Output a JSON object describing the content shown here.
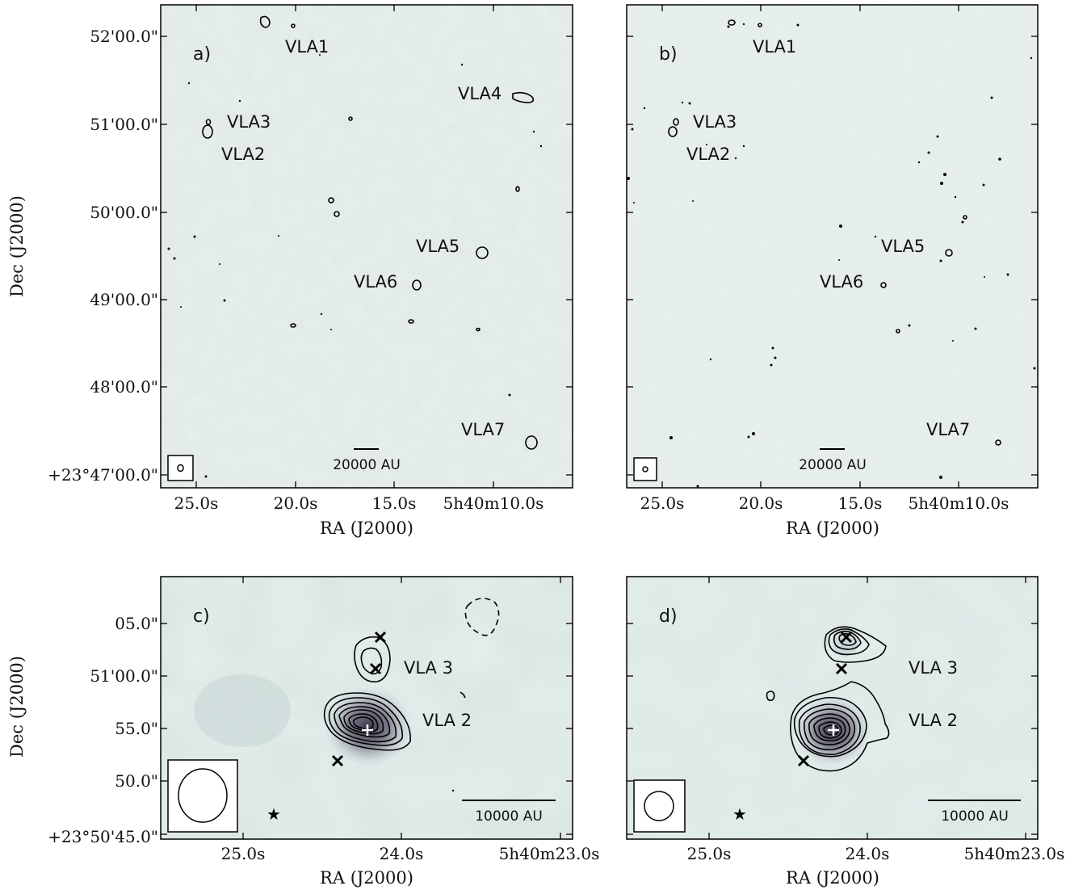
{
  "chart_data": [
    {
      "type": "contour-map",
      "panel_label": "a)",
      "xlabel": "RA (J2000)",
      "ylabel": "Dec (J2000)",
      "x_tick_labels": [
        "25.0s",
        "20.0s",
        "15.0s",
        "5h40m10.0s"
      ],
      "y_tick_labels": [
        "52'00.0\"",
        "51'00.0\"",
        "50'00.0\"",
        "49'00.0\"",
        "48'00.0\"",
        "+23°47'00.0\""
      ],
      "scale_bar_label": "20000 AU",
      "sources": [
        {
          "name": "VLA1",
          "ra_s": 21.2,
          "dec": "52'05\""
        },
        {
          "name": "VLA2",
          "ra_s": 24.2,
          "dec": "50'55\""
        },
        {
          "name": "VLA3",
          "ra_s": 24.1,
          "dec": "51'00\""
        },
        {
          "name": "VLA4",
          "ra_s": 9.8,
          "dec": "51'18\""
        },
        {
          "name": "VLA5",
          "ra_s": 10.9,
          "dec": "49'32\""
        },
        {
          "name": "VLA6",
          "ra_s": 15.6,
          "dec": "49'10\""
        },
        {
          "name": "VLA7",
          "ra_s": 9.8,
          "dec": "47'20\""
        }
      ]
    },
    {
      "type": "contour-map",
      "panel_label": "b)",
      "xlabel": "RA (J2000)",
      "ylabel": "",
      "x_tick_labels": [
        "25.0s",
        "20.0s",
        "15.0s",
        "5h40m10.0s"
      ],
      "y_tick_labels": [],
      "scale_bar_label": "20000 AU",
      "sources": [
        {
          "name": "VLA1",
          "ra_s": 21.2,
          "dec": "52'05\""
        },
        {
          "name": "VLA2",
          "ra_s": 24.2,
          "dec": "50'55\""
        },
        {
          "name": "VLA3",
          "ra_s": 24.1,
          "dec": "51'00\""
        },
        {
          "name": "VLA5",
          "ra_s": 10.9,
          "dec": "49'32\""
        },
        {
          "name": "VLA6",
          "ra_s": 15.6,
          "dec": "49'10\""
        },
        {
          "name": "VLA7",
          "ra_s": 9.8,
          "dec": "47'20\""
        }
      ]
    },
    {
      "type": "contour-map",
      "panel_label": "c)",
      "xlabel": "RA (J2000)",
      "ylabel": "Dec (J2000)",
      "x_tick_labels": [
        "25.0s",
        "24.0s",
        "5h40m23.0s"
      ],
      "y_tick_labels": [
        "05.0\"",
        "51'00.0\"",
        "55.0\"",
        "50.0\"",
        "+23°50'45.0\""
      ],
      "scale_bar_label": "10000 AU",
      "sources": [
        {
          "name": "VLA 3",
          "ra_s": 24.1,
          "dec": "51'01.5\""
        },
        {
          "name": "VLA 2",
          "ra_s": 24.22,
          "dec": "50'55.0\""
        }
      ]
    },
    {
      "type": "contour-map",
      "panel_label": "d)",
      "xlabel": "RA (J2000)",
      "ylabel": "",
      "x_tick_labels": [
        "25.0s",
        "24.0s",
        "5h40m23.0s"
      ],
      "y_tick_labels": [],
      "scale_bar_label": "10000 AU",
      "sources": [
        {
          "name": "VLA 3",
          "ra_s": 24.08,
          "dec": "51'02.0\""
        },
        {
          "name": "VLA 2",
          "ra_s": 24.2,
          "dec": "50'55.0\""
        }
      ]
    }
  ],
  "colors": {
    "background_map": "#dfe9e8",
    "frame": "#000000",
    "peak": "#4a4658"
  }
}
